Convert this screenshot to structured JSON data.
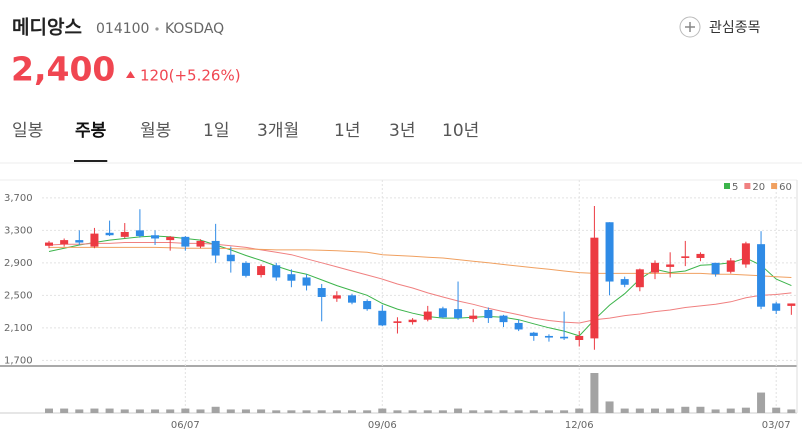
{
  "header": {
    "name": "메디앙스",
    "code": "014100",
    "market": "KOSDAQ",
    "watch_button": "관심종목"
  },
  "price": {
    "value": "2,400",
    "change": "120(+5.26%)"
  },
  "tabs": [
    "일봉",
    "주봉",
    "월봉",
    "1일",
    "3개월",
    "1년",
    "3년",
    "10년"
  ],
  "active_tab": 1,
  "chart_data": {
    "type": "candlestick",
    "categories": [
      null,
      null,
      null,
      null,
      null,
      null,
      null,
      null,
      null,
      "06/07",
      null,
      null,
      null,
      null,
      null,
      null,
      null,
      null,
      null,
      null,
      null,
      null,
      "09/06",
      null,
      null,
      null,
      null,
      null,
      null,
      null,
      null,
      null,
      null,
      null,
      null,
      "12/06",
      null,
      null,
      null,
      null,
      null,
      null,
      null,
      null,
      null,
      null,
      null,
      null,
      "03/07",
      null
    ],
    "open": [
      3110,
      3130,
      3180,
      3100,
      3270,
      3220,
      3300,
      3240,
      3180,
      3220,
      3100,
      3170,
      3000,
      2900,
      2750,
      2870,
      2760,
      2720,
      2590,
      2460,
      2500,
      2430,
      2310,
      2160,
      2170,
      2200,
      2340,
      2330,
      2210,
      2320,
      2250,
      2160,
      2040,
      2000,
      1990,
      1950,
      1970,
      3400,
      2700,
      2600,
      2780,
      2850,
      2960,
      2960,
      2900,
      2790,
      2880,
      3130,
      2400,
      2370
    ],
    "high": [
      3170,
      3200,
      3300,
      3330,
      3420,
      3390,
      3560,
      3300,
      3230,
      3230,
      3190,
      3380,
      3100,
      2920,
      2880,
      2900,
      2820,
      2760,
      2640,
      2550,
      2520,
      2450,
      2380,
      2230,
      2220,
      2370,
      2360,
      2670,
      2330,
      2350,
      2260,
      2200,
      2050,
      2020,
      2300,
      2060,
      3600,
      3400,
      2730,
      2830,
      2930,
      3030,
      3170,
      3030,
      2900,
      2960,
      3160,
      3290,
      2420,
      2400
    ],
    "low": [
      3080,
      3100,
      3120,
      3080,
      3230,
      3200,
      3210,
      3120,
      3050,
      3050,
      3080,
      2900,
      2780,
      2720,
      2720,
      2680,
      2600,
      2560,
      2180,
      2420,
      2390,
      2310,
      2120,
      2030,
      2140,
      2180,
      2220,
      2200,
      2170,
      2160,
      2110,
      2060,
      1940,
      1930,
      1950,
      1870,
      1830,
      2500,
      2600,
      2550,
      2700,
      2720,
      2860,
      2920,
      2730,
      2770,
      2840,
      2330,
      2270,
      2260
    ],
    "close": [
      3150,
      3180,
      3150,
      3260,
      3240,
      3280,
      3230,
      3200,
      3220,
      3100,
      3170,
      2990,
      2920,
      2740,
      2860,
      2720,
      2680,
      2620,
      2480,
      2500,
      2410,
      2330,
      2130,
      2180,
      2200,
      2300,
      2230,
      2220,
      2250,
      2220,
      2170,
      2080,
      2000,
      1980,
      1970,
      2000,
      3210,
      2670,
      2630,
      2820,
      2900,
      2880,
      2980,
      3010,
      2760,
      2930,
      3140,
      2360,
      2310,
      2400
    ],
    "volume": [
      5,
      5,
      4,
      5,
      5,
      4,
      4,
      4,
      4,
      5,
      4,
      7,
      4,
      4,
      4,
      3,
      3,
      3,
      3,
      3,
      3,
      3,
      5,
      3,
      3,
      3,
      3,
      5,
      3,
      3,
      3,
      3,
      3,
      3,
      3,
      5,
      45,
      13,
      5,
      5,
      5,
      5,
      7,
      7,
      4,
      5,
      6,
      23,
      6,
      4
    ],
    "up_color": "#ec3a42",
    "down_color": "#2f8be6",
    "volume_color": "#a3a3a3",
    "series": [
      {
        "name": "5",
        "color": "#3cb44b",
        "values": [
          3040,
          3080,
          3120,
          3150,
          3180,
          3200,
          3220,
          3230,
          3220,
          3200,
          3180,
          3120,
          3060,
          2990,
          2930,
          2860,
          2800,
          2760,
          2690,
          2620,
          2560,
          2500,
          2400,
          2330,
          2280,
          2240,
          2220,
          2220,
          2230,
          2240,
          2230,
          2200,
          2150,
          2100,
          2060,
          2000,
          2200,
          2380,
          2520,
          2700,
          2820,
          2780,
          2800,
          2870,
          2880,
          2900,
          2960,
          2870,
          2700,
          2620
        ]
      },
      {
        "name": "20",
        "color": "#f08080",
        "values": [
          3120,
          3130,
          3130,
          3140,
          3140,
          3150,
          3150,
          3150,
          3150,
          3140,
          3140,
          3130,
          3110,
          3090,
          3060,
          3030,
          3000,
          2950,
          2900,
          2850,
          2800,
          2750,
          2700,
          2640,
          2590,
          2530,
          2480,
          2430,
          2390,
          2340,
          2300,
          2260,
          2220,
          2190,
          2170,
          2160,
          2200,
          2220,
          2250,
          2270,
          2300,
          2320,
          2350,
          2370,
          2390,
          2420,
          2470,
          2500,
          2510,
          2530
        ]
      },
      {
        "name": "60",
        "color": "#f0a060",
        "values": [
          3090,
          3090,
          3090,
          3090,
          3090,
          3090,
          3090,
          3090,
          3085,
          3080,
          3080,
          3080,
          3075,
          3070,
          3065,
          3060,
          3060,
          3060,
          3055,
          3050,
          3040,
          3030,
          3000,
          2990,
          2980,
          2970,
          2960,
          2940,
          2920,
          2900,
          2880,
          2860,
          2840,
          2820,
          2800,
          2780,
          2770,
          2770,
          2770,
          2770,
          2770,
          2770,
          2770,
          2770,
          2760,
          2760,
          2750,
          2740,
          2730,
          2720
        ]
      }
    ],
    "ylim": [
      1630,
      3920
    ],
    "yticks": [
      {
        "value": 3700,
        "label": "3,700"
      },
      {
        "value": 3300,
        "label": "3,300"
      },
      {
        "value": 2900,
        "label": "2,900"
      },
      {
        "value": 2500,
        "label": "2,500"
      },
      {
        "value": 2100,
        "label": "2,100"
      },
      {
        "value": 1700,
        "label": "1,700"
      }
    ],
    "grid": true
  }
}
